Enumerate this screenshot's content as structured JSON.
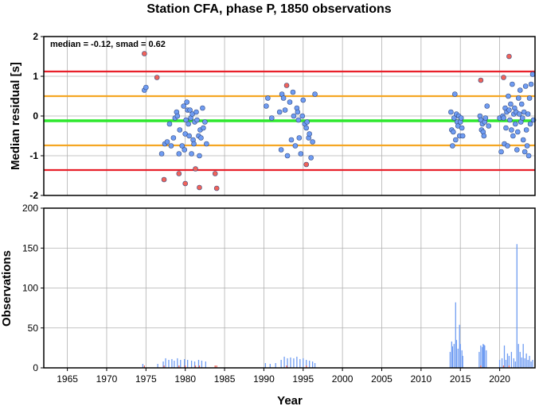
{
  "chart_data": [
    {
      "type": "scatter",
      "title": "Station CFA, phase P, 1850 observations",
      "ylabel": "Median residual [s]",
      "annotation": "median = -0.12, smad = 0.62",
      "xlim": [
        1962,
        2024.5
      ],
      "ylim": [
        -2,
        2
      ],
      "yticks": [
        2,
        1,
        0,
        -1,
        -2
      ],
      "grid": true,
      "reference_lines": [
        {
          "y": 1.12,
          "color": "#e8202a"
        },
        {
          "y": 0.5,
          "color": "#f5a623"
        },
        {
          "y": -0.12,
          "color": "#2ee82e"
        },
        {
          "y": -0.74,
          "color": "#f5a623"
        },
        {
          "y": -1.36,
          "color": "#e8202a"
        }
      ],
      "series": [
        {
          "color": "#6f9cf2",
          "points": [
            [
              1974.8,
              0.65
            ],
            [
              1975.0,
              0.72
            ],
            [
              1977.0,
              -0.95
            ],
            [
              1977.4,
              -0.7
            ],
            [
              1977.7,
              -0.65
            ],
            [
              1978.0,
              -0.2
            ],
            [
              1978.2,
              -0.75
            ],
            [
              1978.5,
              -0.55
            ],
            [
              1978.7,
              -0.05
            ],
            [
              1978.9,
              0.1
            ],
            [
              1979.0,
              0.0
            ],
            [
              1979.2,
              -0.95
            ],
            [
              1979.3,
              -0.35
            ],
            [
              1979.6,
              -0.75
            ],
            [
              1979.8,
              0.25
            ],
            [
              1979.9,
              -0.85
            ],
            [
              1980.0,
              -0.45
            ],
            [
              1980.1,
              -0.1
            ],
            [
              1980.2,
              0.35
            ],
            [
              1980.3,
              0.15
            ],
            [
              1980.4,
              -0.2
            ],
            [
              1980.5,
              -0.5
            ],
            [
              1980.6,
              0.15
            ],
            [
              1980.7,
              -0.05
            ],
            [
              1980.8,
              -0.95
            ],
            [
              1980.9,
              0.05
            ],
            [
              1981.0,
              -0.6
            ],
            [
              1981.1,
              -0.7
            ],
            [
              1981.2,
              -0.15
            ],
            [
              1981.4,
              0.1
            ],
            [
              1981.5,
              -0.1
            ],
            [
              1981.7,
              -0.5
            ],
            [
              1981.8,
              -1.0
            ],
            [
              1981.9,
              -0.35
            ],
            [
              1982.0,
              -0.55
            ],
            [
              1982.2,
              0.2
            ],
            [
              1982.3,
              -0.3
            ],
            [
              1982.5,
              -0.15
            ],
            [
              1982.7,
              -0.7
            ],
            [
              1990.3,
              0.25
            ],
            [
              1990.5,
              0.45
            ],
            [
              1991.0,
              -0.05
            ],
            [
              1992.0,
              0.1
            ],
            [
              1992.2,
              -0.85
            ],
            [
              1992.3,
              0.55
            ],
            [
              1992.5,
              0.45
            ],
            [
              1992.7,
              0.15
            ],
            [
              1993.0,
              -1.0
            ],
            [
              1993.3,
              0.35
            ],
            [
              1993.5,
              -0.6
            ],
            [
              1993.7,
              0.6
            ],
            [
              1993.8,
              0.0
            ],
            [
              1994.0,
              -0.75
            ],
            [
              1994.2,
              0.2
            ],
            [
              1994.3,
              0.1
            ],
            [
              1994.4,
              -0.1
            ],
            [
              1994.5,
              -0.55
            ],
            [
              1994.7,
              -0.95
            ],
            [
              1994.9,
              0.0
            ],
            [
              1995.0,
              0.4
            ],
            [
              1995.2,
              -0.2
            ],
            [
              1995.4,
              -0.3
            ],
            [
              1995.5,
              -0.15
            ],
            [
              1995.7,
              -0.55
            ],
            [
              1995.8,
              -0.45
            ],
            [
              1996.0,
              -1.05
            ],
            [
              1996.2,
              -0.65
            ],
            [
              1996.5,
              0.55
            ],
            [
              2013.8,
              0.1
            ],
            [
              2013.9,
              -0.35
            ],
            [
              2014.0,
              -0.75
            ],
            [
              2014.1,
              -0.4
            ],
            [
              2014.2,
              -0.05
            ],
            [
              2014.3,
              0.55
            ],
            [
              2014.4,
              -0.6
            ],
            [
              2014.5,
              0.05
            ],
            [
              2014.6,
              -0.15
            ],
            [
              2014.7,
              -0.25
            ],
            [
              2014.8,
              0.0
            ],
            [
              2014.9,
              -0.5
            ],
            [
              2015.0,
              -0.15
            ],
            [
              2015.1,
              -0.05
            ],
            [
              2015.2,
              -0.3
            ],
            [
              2015.3,
              -0.5
            ],
            [
              2017.5,
              0.0
            ],
            [
              2017.6,
              -0.1
            ],
            [
              2017.7,
              -0.35
            ],
            [
              2017.8,
              -0.2
            ],
            [
              2017.9,
              -0.4
            ],
            [
              2018.0,
              -0.5
            ],
            [
              2018.1,
              -0.15
            ],
            [
              2018.2,
              -0.05
            ],
            [
              2018.4,
              0.25
            ],
            [
              2018.6,
              -0.25
            ],
            [
              2020.0,
              -0.05
            ],
            [
              2020.2,
              -0.9
            ],
            [
              2020.4,
              0.0
            ],
            [
              2020.5,
              -0.05
            ],
            [
              2020.6,
              -0.7
            ],
            [
              2020.7,
              0.2
            ],
            [
              2020.8,
              -0.3
            ],
            [
              2020.9,
              0.1
            ],
            [
              2021.0,
              -0.75
            ],
            [
              2021.1,
              0.5
            ],
            [
              2021.2,
              0.15
            ],
            [
              2021.3,
              -0.1
            ],
            [
              2021.4,
              0.3
            ],
            [
              2021.5,
              -0.35
            ],
            [
              2021.6,
              0.8
            ],
            [
              2021.7,
              -0.5
            ],
            [
              2021.8,
              0.05
            ],
            [
              2021.9,
              0.2
            ],
            [
              2022.0,
              -0.2
            ],
            [
              2022.1,
              0.1
            ],
            [
              2022.2,
              -0.85
            ],
            [
              2022.3,
              -0.4
            ],
            [
              2022.4,
              0.45
            ],
            [
              2022.5,
              0.05
            ],
            [
              2022.6,
              0.65
            ],
            [
              2022.7,
              -0.15
            ],
            [
              2022.8,
              0.3
            ],
            [
              2022.9,
              -0.05
            ],
            [
              2023.0,
              -0.6
            ],
            [
              2023.1,
              0.1
            ],
            [
              2023.2,
              -0.9
            ],
            [
              2023.3,
              0.75
            ],
            [
              2023.4,
              -0.35
            ],
            [
              2023.5,
              -0.75
            ],
            [
              2023.6,
              0.05
            ],
            [
              2023.7,
              -1.0
            ],
            [
              2023.8,
              0.45
            ],
            [
              2023.9,
              -0.2
            ],
            [
              2024.0,
              0.8
            ],
            [
              2024.2,
              1.05
            ],
            [
              2024.3,
              -0.1
            ]
          ]
        },
        {
          "color": "#f0635a",
          "points": [
            [
              1974.8,
              1.57
            ],
            [
              1976.4,
              0.97
            ],
            [
              1977.3,
              -1.6
            ],
            [
              1979.2,
              -1.45
            ],
            [
              1980.0,
              -1.7
            ],
            [
              1981.3,
              -1.33
            ],
            [
              1981.8,
              -1.8
            ],
            [
              1983.8,
              -1.45
            ],
            [
              1984.0,
              -1.82
            ],
            [
              1992.9,
              0.77
            ],
            [
              1995.4,
              -1.22
            ],
            [
              2017.6,
              0.9
            ],
            [
              2020.5,
              0.97
            ],
            [
              2021.2,
              1.5
            ]
          ]
        }
      ]
    },
    {
      "type": "bar",
      "xlabel": "Year",
      "ylabel": "Observations",
      "xlim": [
        1962,
        2024.5
      ],
      "ylim": [
        0,
        200
      ],
      "yticks": [
        0,
        50,
        100,
        150,
        200
      ],
      "xticks": [
        1965,
        1970,
        1975,
        1980,
        1985,
        1990,
        1995,
        2000,
        2005,
        2010,
        2015,
        2020
      ],
      "grid": true,
      "series": [
        {
          "color": "#6f9cf2",
          "values": [
            [
              1974.6,
              5
            ],
            [
              1976.5,
              5
            ],
            [
              1977.2,
              8
            ],
            [
              1977.5,
              12
            ],
            [
              1977.9,
              10
            ],
            [
              1978.3,
              11
            ],
            [
              1978.6,
              9
            ],
            [
              1979.0,
              12
            ],
            [
              1979.4,
              10
            ],
            [
              1979.9,
              11
            ],
            [
              1980.3,
              10
            ],
            [
              1980.8,
              9
            ],
            [
              1981.2,
              8
            ],
            [
              1981.7,
              10
            ],
            [
              1982.1,
              9
            ],
            [
              1982.6,
              8
            ],
            [
              1990.2,
              6
            ],
            [
              1990.8,
              5
            ],
            [
              1991.5,
              6
            ],
            [
              1992.2,
              10
            ],
            [
              1992.6,
              14
            ],
            [
              1993.0,
              12
            ],
            [
              1993.4,
              13
            ],
            [
              1993.8,
              12
            ],
            [
              1994.2,
              14
            ],
            [
              1994.6,
              11
            ],
            [
              1995.0,
              12
            ],
            [
              1995.4,
              10
            ],
            [
              1995.8,
              9
            ],
            [
              1996.2,
              8
            ],
            [
              1996.5,
              6
            ],
            [
              2013.7,
              20
            ],
            [
              2013.9,
              33
            ],
            [
              2014.0,
              27
            ],
            [
              2014.2,
              30
            ],
            [
              2014.4,
              82
            ],
            [
              2014.5,
              35
            ],
            [
              2014.7,
              24
            ],
            [
              2014.9,
              54
            ],
            [
              2015.0,
              30
            ],
            [
              2015.2,
              22
            ],
            [
              2015.3,
              15
            ],
            [
              2017.4,
              20
            ],
            [
              2017.6,
              28
            ],
            [
              2017.8,
              26
            ],
            [
              2017.9,
              30
            ],
            [
              2018.0,
              29
            ],
            [
              2018.1,
              28
            ],
            [
              2018.3,
              22
            ],
            [
              2020.0,
              10
            ],
            [
              2020.3,
              12
            ],
            [
              2020.6,
              28
            ],
            [
              2020.8,
              10
            ],
            [
              2021.0,
              18
            ],
            [
              2021.2,
              15
            ],
            [
              2021.5,
              20
            ],
            [
              2021.8,
              12
            ],
            [
              2022.0,
              8
            ],
            [
              2022.2,
              155
            ],
            [
              2022.4,
              30
            ],
            [
              2022.6,
              20
            ],
            [
              2022.8,
              13
            ],
            [
              2023.0,
              30
            ],
            [
              2023.2,
              12
            ],
            [
              2023.4,
              18
            ],
            [
              2023.6,
              10
            ],
            [
              2023.8,
              15
            ],
            [
              2024.0,
              8
            ],
            [
              2024.2,
              10
            ]
          ]
        },
        {
          "color": "#f0635a",
          "values": [
            [
              1974.8,
              3
            ],
            [
              1977.3,
              3
            ],
            [
              1979.2,
              3
            ],
            [
              1980.0,
              3
            ],
            [
              1981.3,
              3
            ],
            [
              1981.8,
              3
            ],
            [
              1983.8,
              3
            ],
            [
              1984.0,
              3
            ],
            [
              1992.9,
              3
            ],
            [
              1995.4,
              3
            ],
            [
              2017.6,
              3
            ],
            [
              2020.5,
              3
            ],
            [
              2021.2,
              3
            ]
          ]
        }
      ]
    }
  ]
}
